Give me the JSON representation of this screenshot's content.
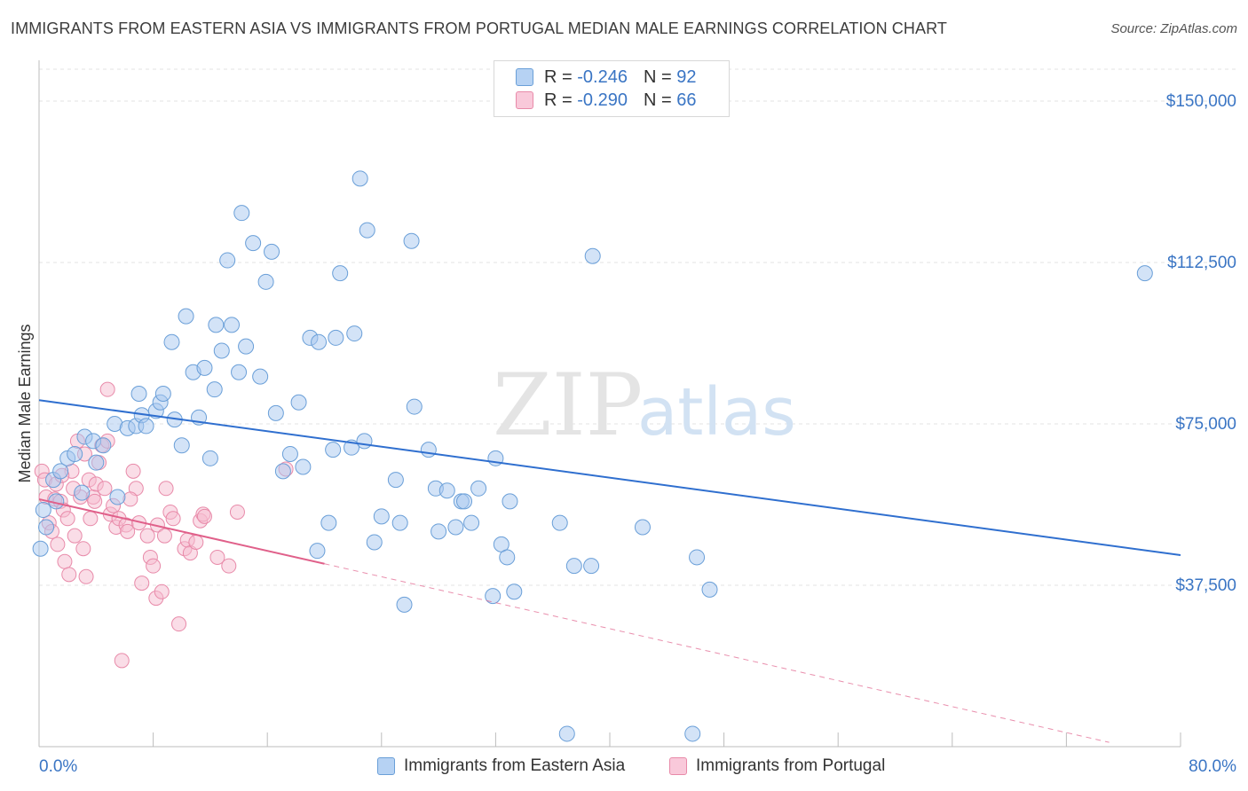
{
  "title": "IMMIGRANTS FROM EASTERN ASIA VS IMMIGRANTS FROM PORTUGAL MEDIAN MALE EARNINGS CORRELATION CHART",
  "source": "Source: ZipAtlas.com",
  "watermark": {
    "part1": "ZIP",
    "part2": "atlas"
  },
  "legend": {
    "r_label": "R =",
    "n_label": "N =",
    "rows": [
      {
        "r": "-0.246",
        "n": "92"
      },
      {
        "r": "-0.290",
        "n": "66"
      }
    ]
  },
  "bottom_legend": {
    "series1": "Immigrants from Eastern Asia",
    "series2": "Immigrants from Portugal"
  },
  "colors": {
    "blue_fill": "#a8c8ef",
    "blue_stroke": "#6a9fd8",
    "blue_line": "#2f6fcf",
    "pink_fill": "#f6bcd0",
    "pink_stroke": "#e88aa9",
    "pink_line": "#e0608a",
    "tick_text": "#3a75c4",
    "grid": "#e3e3e3"
  },
  "chart_data": {
    "type": "scatter",
    "title": "IMMIGRANTS FROM EASTERN ASIA VS IMMIGRANTS FROM PORTUGAL MEDIAN MALE EARNINGS CORRELATION CHART",
    "xlabel": "",
    "ylabel": "Median Male Earnings",
    "xlim": [
      0,
      80
    ],
    "ylim": [
      0,
      157000
    ],
    "x_tick_labels": [
      "0.0%",
      "80.0%"
    ],
    "y_ticks": [
      37500,
      75000,
      112500,
      150000
    ],
    "y_tick_labels": [
      "$37,500",
      "$75,000",
      "$112,500",
      "$150,000"
    ],
    "grid": true,
    "legend_position": "top-center",
    "series": [
      {
        "name": "Immigrants from Eastern Asia",
        "r": -0.246,
        "n": 92,
        "trend": {
          "x": [
            0,
            80
          ],
          "y": [
            80500,
            44500
          ]
        },
        "points": [
          [
            0.1,
            46000
          ],
          [
            0.3,
            55000
          ],
          [
            0.5,
            51000
          ],
          [
            1.0,
            62000
          ],
          [
            1.2,
            57000
          ],
          [
            1.5,
            64000
          ],
          [
            2.0,
            67000
          ],
          [
            2.5,
            68000
          ],
          [
            3.0,
            59000
          ],
          [
            3.2,
            72000
          ],
          [
            3.8,
            71000
          ],
          [
            4.0,
            66000
          ],
          [
            4.5,
            70000
          ],
          [
            5.5,
            58000
          ],
          [
            5.3,
            75000
          ],
          [
            6.2,
            74000
          ],
          [
            6.8,
            74500
          ],
          [
            7.0,
            82000
          ],
          [
            7.2,
            77000
          ],
          [
            7.5,
            74500
          ],
          [
            8.2,
            78000
          ],
          [
            8.5,
            80000
          ],
          [
            8.7,
            82000
          ],
          [
            9.5,
            76000
          ],
          [
            9.3,
            94000
          ],
          [
            10.0,
            70000
          ],
          [
            10.3,
            100000
          ],
          [
            10.8,
            87000
          ],
          [
            11.2,
            76500
          ],
          [
            11.6,
            88000
          ],
          [
            12.0,
            67000
          ],
          [
            12.3,
            83000
          ],
          [
            12.4,
            98000
          ],
          [
            12.8,
            92000
          ],
          [
            13.2,
            113000
          ],
          [
            13.5,
            98000
          ],
          [
            14.0,
            87000
          ],
          [
            14.2,
            124000
          ],
          [
            14.5,
            93000
          ],
          [
            15.0,
            117000
          ],
          [
            15.5,
            86000
          ],
          [
            15.9,
            108000
          ],
          [
            16.3,
            115000
          ],
          [
            16.6,
            77500
          ],
          [
            17.1,
            64000
          ],
          [
            17.6,
            68000
          ],
          [
            18.2,
            80000
          ],
          [
            18.5,
            65000
          ],
          [
            19.0,
            95000
          ],
          [
            19.5,
            45500
          ],
          [
            19.6,
            94000
          ],
          [
            20.3,
            52000
          ],
          [
            20.6,
            69000
          ],
          [
            20.8,
            95000
          ],
          [
            21.1,
            110000
          ],
          [
            21.9,
            69500
          ],
          [
            22.1,
            96000
          ],
          [
            22.5,
            132000
          ],
          [
            22.8,
            71000
          ],
          [
            23.0,
            120000
          ],
          [
            23.5,
            47500
          ],
          [
            24.0,
            53500
          ],
          [
            25.0,
            62000
          ],
          [
            25.3,
            52000
          ],
          [
            25.6,
            33000
          ],
          [
            26.1,
            117500
          ],
          [
            26.3,
            79000
          ],
          [
            27.3,
            69000
          ],
          [
            27.8,
            60000
          ],
          [
            28.0,
            50000
          ],
          [
            28.6,
            59500
          ],
          [
            29.2,
            51000
          ],
          [
            29.6,
            57000
          ],
          [
            29.8,
            57000
          ],
          [
            30.3,
            52000
          ],
          [
            30.8,
            60000
          ],
          [
            32.0,
            67000
          ],
          [
            32.4,
            47000
          ],
          [
            32.8,
            44000
          ],
          [
            31.8,
            35000
          ],
          [
            33.3,
            36000
          ],
          [
            33.0,
            57000
          ],
          [
            36.5,
            52000
          ],
          [
            37.5,
            42000
          ],
          [
            38.7,
            42000
          ],
          [
            38.8,
            114000
          ],
          [
            42.3,
            51000
          ],
          [
            46.1,
            44000
          ],
          [
            47.0,
            36500
          ],
          [
            77.5,
            110000
          ],
          [
            37.0,
            3000
          ],
          [
            45.8,
            3000
          ]
        ]
      },
      {
        "name": "Immigrants from Portugal",
        "r": -0.29,
        "n": 66,
        "trend": {
          "x": [
            0,
            20
          ],
          "y": [
            57500,
            42500
          ]
        },
        "trend_dashed": {
          "x": [
            20,
            75
          ],
          "y": [
            42500,
            1000
          ]
        },
        "points": [
          [
            0.2,
            64000
          ],
          [
            0.4,
            62000
          ],
          [
            0.5,
            58000
          ],
          [
            0.7,
            52000
          ],
          [
            0.9,
            50000
          ],
          [
            1.1,
            57500
          ],
          [
            1.2,
            61000
          ],
          [
            1.3,
            47000
          ],
          [
            1.5,
            57000
          ],
          [
            1.7,
            55000
          ],
          [
            1.8,
            43000
          ],
          [
            2.0,
            53000
          ],
          [
            2.1,
            40000
          ],
          [
            2.3,
            64000
          ],
          [
            2.5,
            49000
          ],
          [
            2.7,
            71000
          ],
          [
            2.9,
            58000
          ],
          [
            3.1,
            46000
          ],
          [
            3.2,
            68000
          ],
          [
            3.3,
            39500
          ],
          [
            3.5,
            62000
          ],
          [
            3.6,
            53000
          ],
          [
            3.8,
            58000
          ],
          [
            4.0,
            61000
          ],
          [
            4.2,
            66000
          ],
          [
            4.4,
            70000
          ],
          [
            4.6,
            60000
          ],
          [
            4.8,
            71000
          ],
          [
            5.0,
            54000
          ],
          [
            5.2,
            56000
          ],
          [
            5.4,
            51000
          ],
          [
            5.6,
            53000
          ],
          [
            4.8,
            83000
          ],
          [
            5.8,
            20000
          ],
          [
            6.1,
            51500
          ],
          [
            6.2,
            50000
          ],
          [
            6.6,
            64000
          ],
          [
            6.8,
            60000
          ],
          [
            7.0,
            52000
          ],
          [
            7.2,
            38000
          ],
          [
            7.6,
            49000
          ],
          [
            7.8,
            44000
          ],
          [
            8.0,
            42000
          ],
          [
            8.2,
            34500
          ],
          [
            8.3,
            51500
          ],
          [
            8.6,
            36000
          ],
          [
            8.8,
            49000
          ],
          [
            8.9,
            60000
          ],
          [
            9.2,
            54500
          ],
          [
            9.4,
            53000
          ],
          [
            9.8,
            28500
          ],
          [
            10.2,
            46000
          ],
          [
            10.4,
            48000
          ],
          [
            10.6,
            45000
          ],
          [
            11.0,
            47500
          ],
          [
            11.3,
            52500
          ],
          [
            11.5,
            54000
          ],
          [
            11.6,
            53500
          ],
          [
            12.5,
            44000
          ],
          [
            13.3,
            42000
          ],
          [
            13.9,
            54500
          ],
          [
            17.3,
            64500
          ],
          [
            1.6,
            63000
          ],
          [
            2.4,
            60000
          ],
          [
            3.9,
            57000
          ],
          [
            6.4,
            57500
          ]
        ]
      }
    ]
  }
}
